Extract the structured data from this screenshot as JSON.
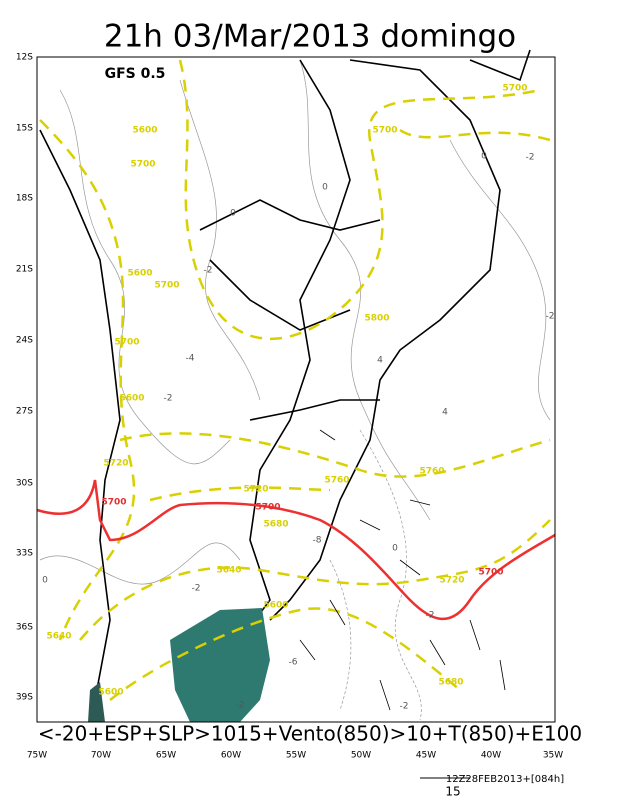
{
  "header": {
    "title": "21h 03/Mar/2013 domingo",
    "model": "GFS 0.5"
  },
  "axes": {
    "lat_labels": [
      "12S",
      "15S",
      "18S",
      "21S",
      "24S",
      "27S",
      "30S",
      "33S",
      "36S",
      "39S"
    ],
    "lon_labels": [
      "75W",
      "70W",
      "65W",
      "60W",
      "55W",
      "50W",
      "45W",
      "40W",
      "35W"
    ]
  },
  "contour_labels": {
    "height": [
      "5700",
      "5700",
      "5600",
      "5700",
      "5600",
      "5700",
      "5800",
      "5700",
      "5600",
      "5720",
      "5720",
      "5760",
      "5760",
      "5680",
      "5640",
      "5600",
      "5720",
      "5640",
      "5600",
      "5680"
    ],
    "red": [
      "5700",
      "5700",
      "5700"
    ],
    "temperature": [
      "-2",
      "0",
      "-2",
      "0",
      "-2",
      "-4",
      "-2",
      "0",
      "-2",
      "4",
      "0",
      "-8",
      "-2",
      "4",
      "0",
      "-6",
      "-2",
      "-2"
    ]
  },
  "caption": "<-20+ESP+SLP>1015+Vento(850)>10+T(850)+E100",
  "footer": {
    "run": "12Z28FEB2013+[084h]",
    "scale": "15"
  }
}
